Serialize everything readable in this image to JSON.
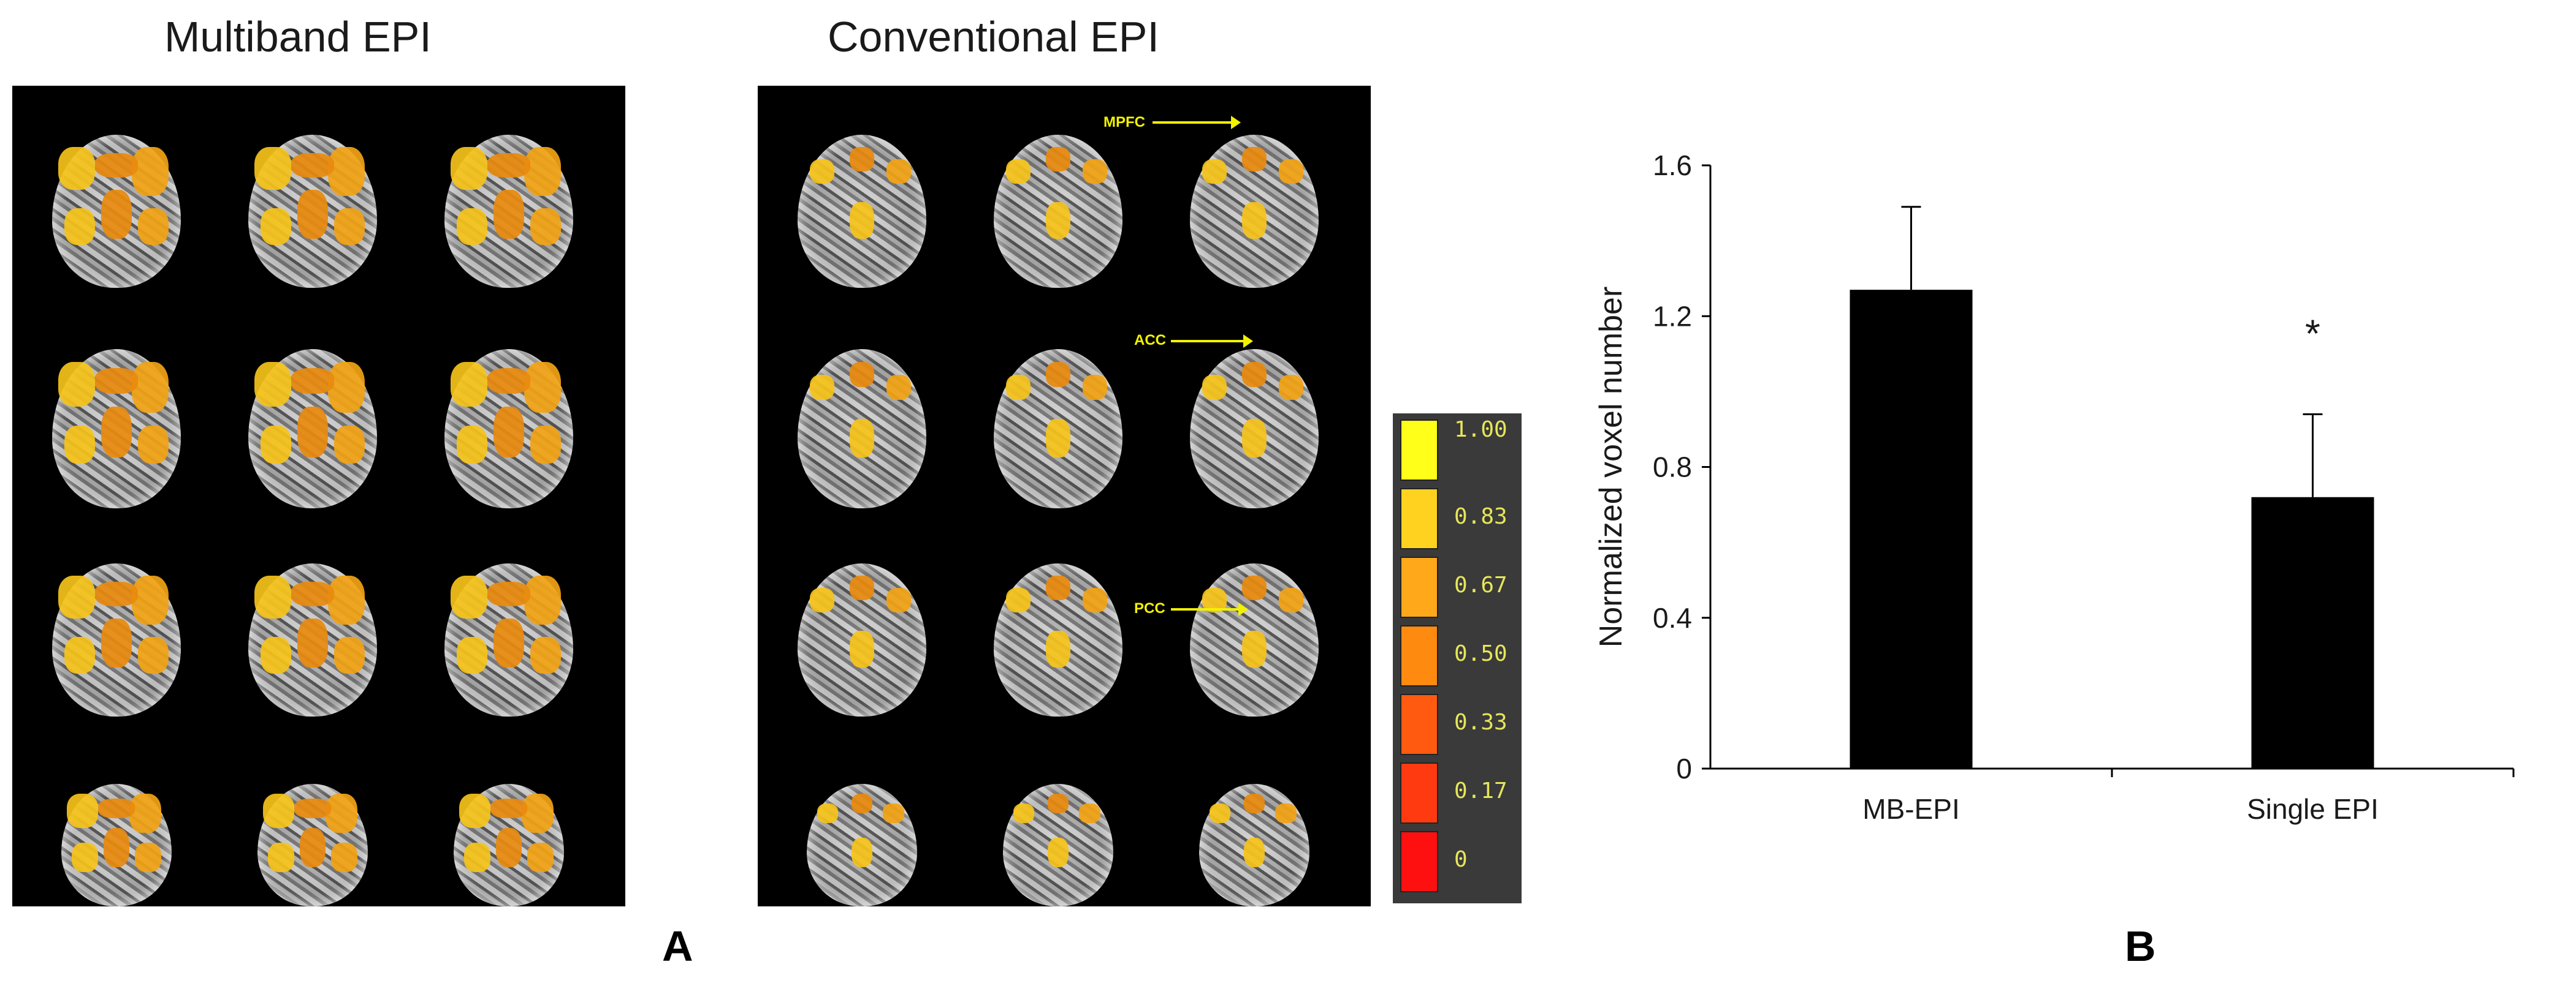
{
  "panel_a": {
    "multiband_title": "Multiband EPI",
    "conventional_title": "Conventional EPI",
    "annotations": [
      "MPFC",
      "ACC",
      "PCC"
    ],
    "letter": "A",
    "colorbar": {
      "labels": [
        "1.00",
        "0.83",
        "0.67",
        "0.50",
        "0.33",
        "0.17",
        "0"
      ],
      "colors": [
        "#ffff1a",
        "#ffd21f",
        "#ffa81a",
        "#ff8a10",
        "#ff5a10",
        "#ff3a10",
        "#ff1010"
      ]
    }
  },
  "panel_b": {
    "letter": "B"
  },
  "chart_data": {
    "type": "bar",
    "categories": [
      "MB-EPI",
      "Single EPI"
    ],
    "values": [
      1.27,
      0.72
    ],
    "error_bars": [
      0.22,
      0.22
    ],
    "annotations": [
      {
        "category": "Single EPI",
        "text": "*"
      }
    ],
    "ylabel": "Normalized voxel number",
    "xlabel": "",
    "ylim": [
      0,
      1.6
    ],
    "yticks": [
      "0",
      "0.4",
      "0.8",
      "1.2",
      "1.6"
    ],
    "bar_color": "#000000",
    "grid": false
  }
}
